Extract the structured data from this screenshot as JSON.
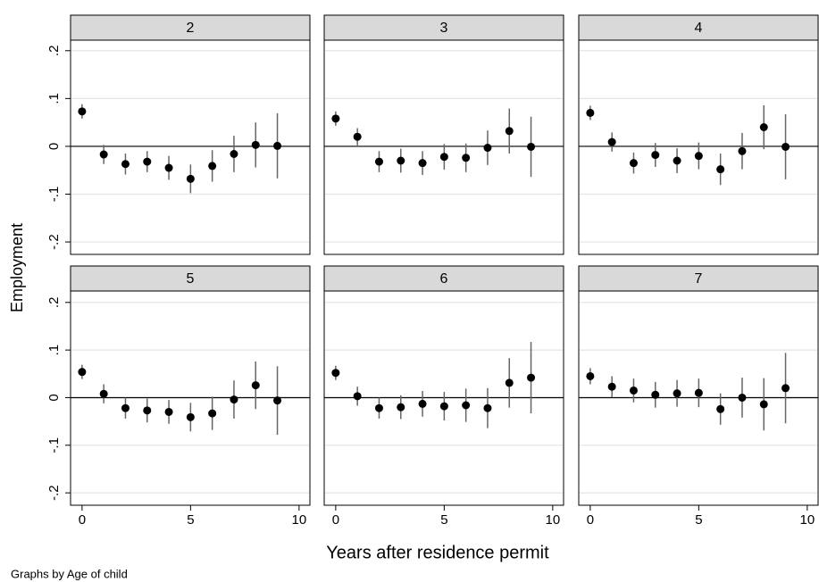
{
  "chart_data": [
    {
      "type": "scatter",
      "title": "2",
      "x": [
        0,
        1,
        2,
        3,
        4,
        5,
        6,
        7,
        8,
        9
      ],
      "values": [
        0.073,
        -0.017,
        -0.037,
        -0.032,
        -0.045,
        -0.068,
        -0.041,
        -0.016,
        0.003,
        0.001
      ],
      "errors": [
        0.015,
        0.02,
        0.022,
        0.022,
        0.025,
        0.03,
        0.033,
        0.038,
        0.047,
        0.068
      ],
      "color": "#000000",
      "error_color": "#666666",
      "xlim": [
        -0.53,
        10.5
      ],
      "ylim": [
        -0.226,
        0.222
      ],
      "yticks": [
        {
          "value": -0.2,
          "label": "-.2"
        },
        {
          "value": -0.1,
          "label": "-.1"
        },
        0,
        {
          "value": 0.1,
          "label": ".1"
        },
        {
          "value": 0.2,
          "label": ".2"
        }
      ],
      "reference_line": 0,
      "grid": true
    },
    {
      "type": "scatter",
      "title": "3",
      "x": [
        0,
        1,
        2,
        3,
        4,
        5,
        6,
        7,
        8,
        9
      ],
      "values": [
        0.058,
        0.02,
        -0.032,
        -0.03,
        -0.035,
        -0.022,
        -0.024,
        -0.003,
        0.032,
        -0.001
      ],
      "errors": [
        0.015,
        0.018,
        0.022,
        0.025,
        0.025,
        0.027,
        0.03,
        0.036,
        0.047,
        0.063
      ],
      "color": "#000000",
      "error_color": "#666666",
      "xlim": [
        -0.53,
        10.5
      ],
      "ylim": [
        -0.226,
        0.222
      ],
      "yticks": [
        -0.2,
        -0.1,
        0,
        0.1,
        0.2
      ],
      "reference_line": 0,
      "grid": true
    },
    {
      "type": "scatter",
      "title": "4",
      "x": [
        0,
        1,
        2,
        3,
        4,
        5,
        6,
        7,
        8,
        9
      ],
      "values": [
        0.07,
        0.009,
        -0.035,
        -0.018,
        -0.03,
        -0.02,
        -0.048,
        -0.01,
        0.04,
        -0.001
      ],
      "errors": [
        0.015,
        0.02,
        0.022,
        0.025,
        0.026,
        0.028,
        0.033,
        0.038,
        0.046,
        0.068
      ],
      "color": "#000000",
      "error_color": "#666666",
      "xlim": [
        -0.53,
        10.5
      ],
      "ylim": [
        -0.226,
        0.222
      ],
      "yticks": [
        -0.2,
        -0.1,
        0,
        0.1,
        0.2
      ],
      "reference_line": 0,
      "grid": true
    },
    {
      "type": "scatter",
      "title": "5",
      "x": [
        0,
        1,
        2,
        3,
        4,
        5,
        6,
        7,
        8,
        9
      ],
      "values": [
        0.054,
        0.008,
        -0.022,
        -0.027,
        -0.03,
        -0.041,
        -0.033,
        -0.004,
        0.026,
        -0.006
      ],
      "errors": [
        0.015,
        0.02,
        0.022,
        0.025,
        0.025,
        0.03,
        0.035,
        0.04,
        0.05,
        0.072
      ],
      "color": "#000000",
      "error_color": "#666666",
      "xlim": [
        -0.53,
        10.5
      ],
      "ylim": [
        -0.226,
        0.224
      ],
      "yticks": [
        {
          "value": -0.2,
          "label": "-.2"
        },
        {
          "value": -0.1,
          "label": "-.1"
        },
        0,
        {
          "value": 0.1,
          "label": ".1"
        },
        {
          "value": 0.2,
          "label": ".2"
        }
      ],
      "xticks": [
        0,
        5,
        10
      ],
      "reference_line": 0,
      "grid": true
    },
    {
      "type": "scatter",
      "title": "6",
      "x": [
        0,
        1,
        2,
        3,
        4,
        5,
        6,
        7,
        8,
        9
      ],
      "values": [
        0.052,
        0.003,
        -0.022,
        -0.02,
        -0.013,
        -0.018,
        -0.016,
        -0.022,
        0.031,
        0.042
      ],
      "errors": [
        0.015,
        0.02,
        0.022,
        0.025,
        0.027,
        0.03,
        0.035,
        0.042,
        0.052,
        0.075
      ],
      "color": "#000000",
      "error_color": "#666666",
      "xlim": [
        -0.53,
        10.5
      ],
      "ylim": [
        -0.226,
        0.224
      ],
      "yticks": [
        -0.2,
        -0.1,
        0,
        0.1,
        0.2
      ],
      "xticks": [
        0,
        5,
        10
      ],
      "reference_line": 0,
      "grid": true
    },
    {
      "type": "scatter",
      "title": "7",
      "x": [
        0,
        1,
        2,
        3,
        4,
        5,
        6,
        7,
        8,
        9
      ],
      "values": [
        0.045,
        0.023,
        0.015,
        0.006,
        0.009,
        0.01,
        -0.024,
        0,
        -0.014,
        0.02
      ],
      "errors": [
        0.017,
        0.022,
        0.025,
        0.027,
        0.028,
        0.03,
        0.033,
        0.042,
        0.055,
        0.074
      ],
      "color": "#000000",
      "error_color": "#666666",
      "xlim": [
        -0.53,
        10.5
      ],
      "ylim": [
        -0.226,
        0.224
      ],
      "yticks": [
        -0.2,
        -0.1,
        0,
        0.1,
        0.2
      ],
      "xticks": [
        0,
        5,
        10
      ],
      "reference_line": 0,
      "grid": true
    }
  ],
  "x_label": "Years after residence permit",
  "y_label": "Employment",
  "note": "Graphs by Age of child"
}
